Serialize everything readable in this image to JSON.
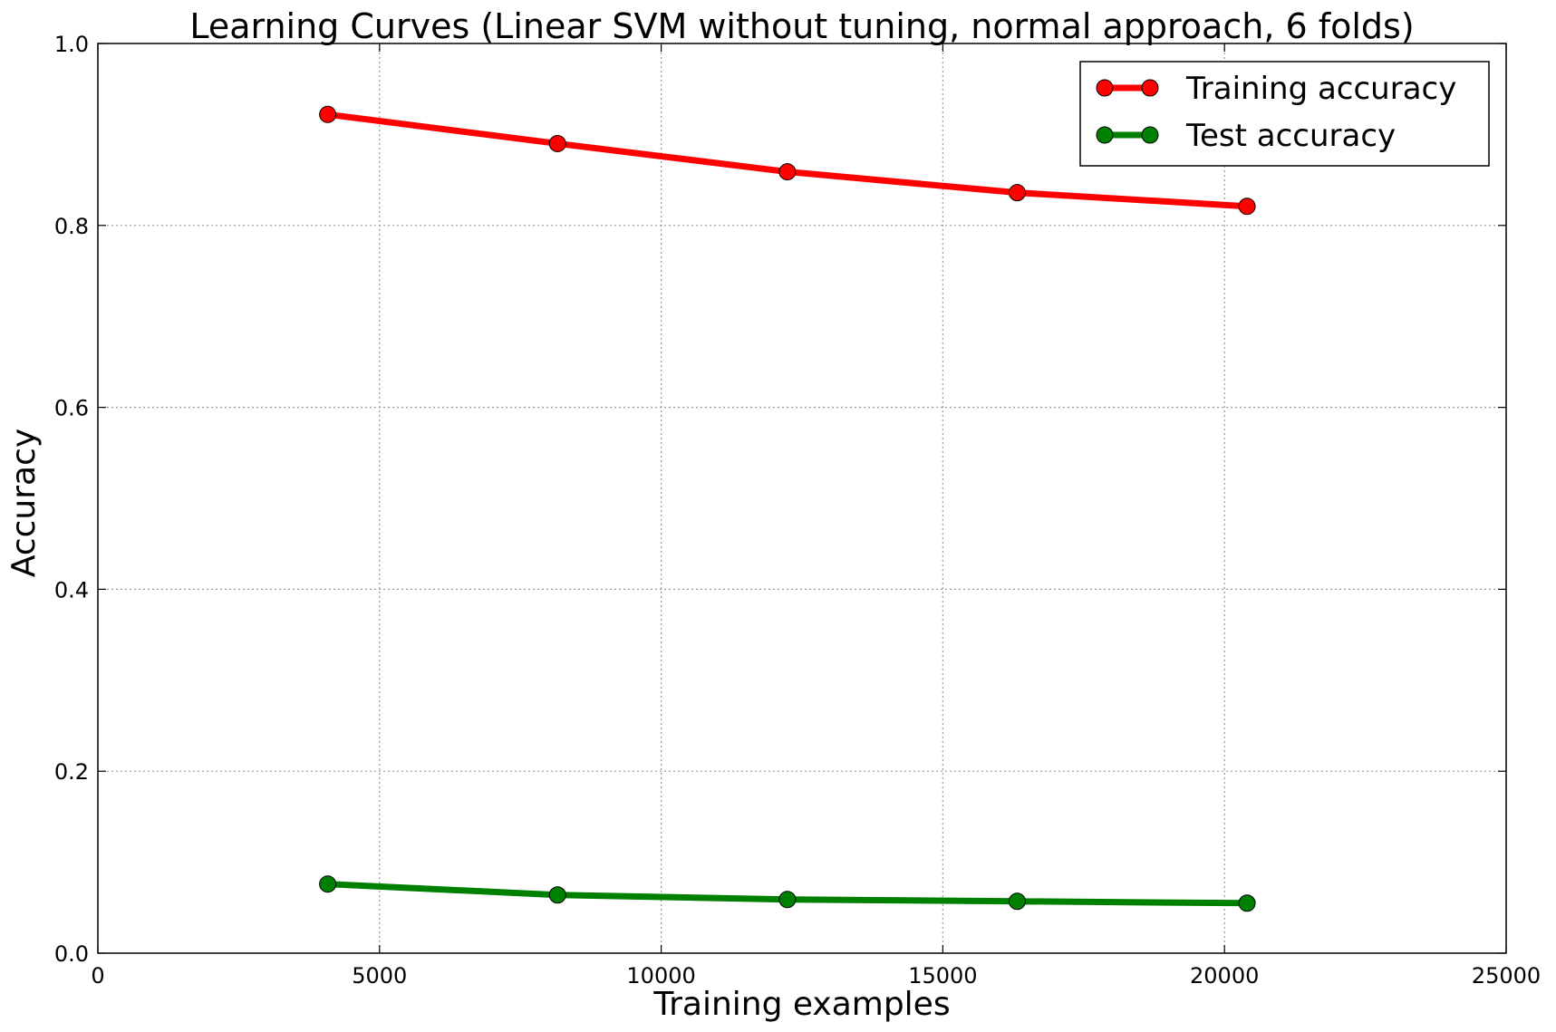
{
  "chart_data": {
    "type": "line",
    "title": "Learning Curves (Linear SVM without tuning, normal approach, 6 folds)",
    "xlabel": "Training examples",
    "ylabel": "Accuracy",
    "xlim": [
      0,
      25000
    ],
    "ylim": [
      0.0,
      1.0
    ],
    "xticks": [
      0,
      5000,
      10000,
      15000,
      20000,
      25000
    ],
    "xtick_labels": [
      "0",
      "5000",
      "10000",
      "15000",
      "20000",
      "25000"
    ],
    "yticks": [
      0.0,
      0.2,
      0.4,
      0.6,
      0.8,
      1.0
    ],
    "ytick_labels": [
      "0.0",
      "0.2",
      "0.4",
      "0.6",
      "0.8",
      "1.0"
    ],
    "grid": true,
    "legend_position": "top-right",
    "x": [
      4080,
      8160,
      12240,
      16320,
      20400
    ],
    "series": [
      {
        "name": "Training accuracy",
        "color": "#ff0000",
        "values": [
          0.922,
          0.89,
          0.859,
          0.836,
          0.821
        ]
      },
      {
        "name": "Test accuracy",
        "color": "#008000",
        "values": [
          0.076,
          0.064,
          0.059,
          0.057,
          0.055
        ]
      }
    ]
  }
}
